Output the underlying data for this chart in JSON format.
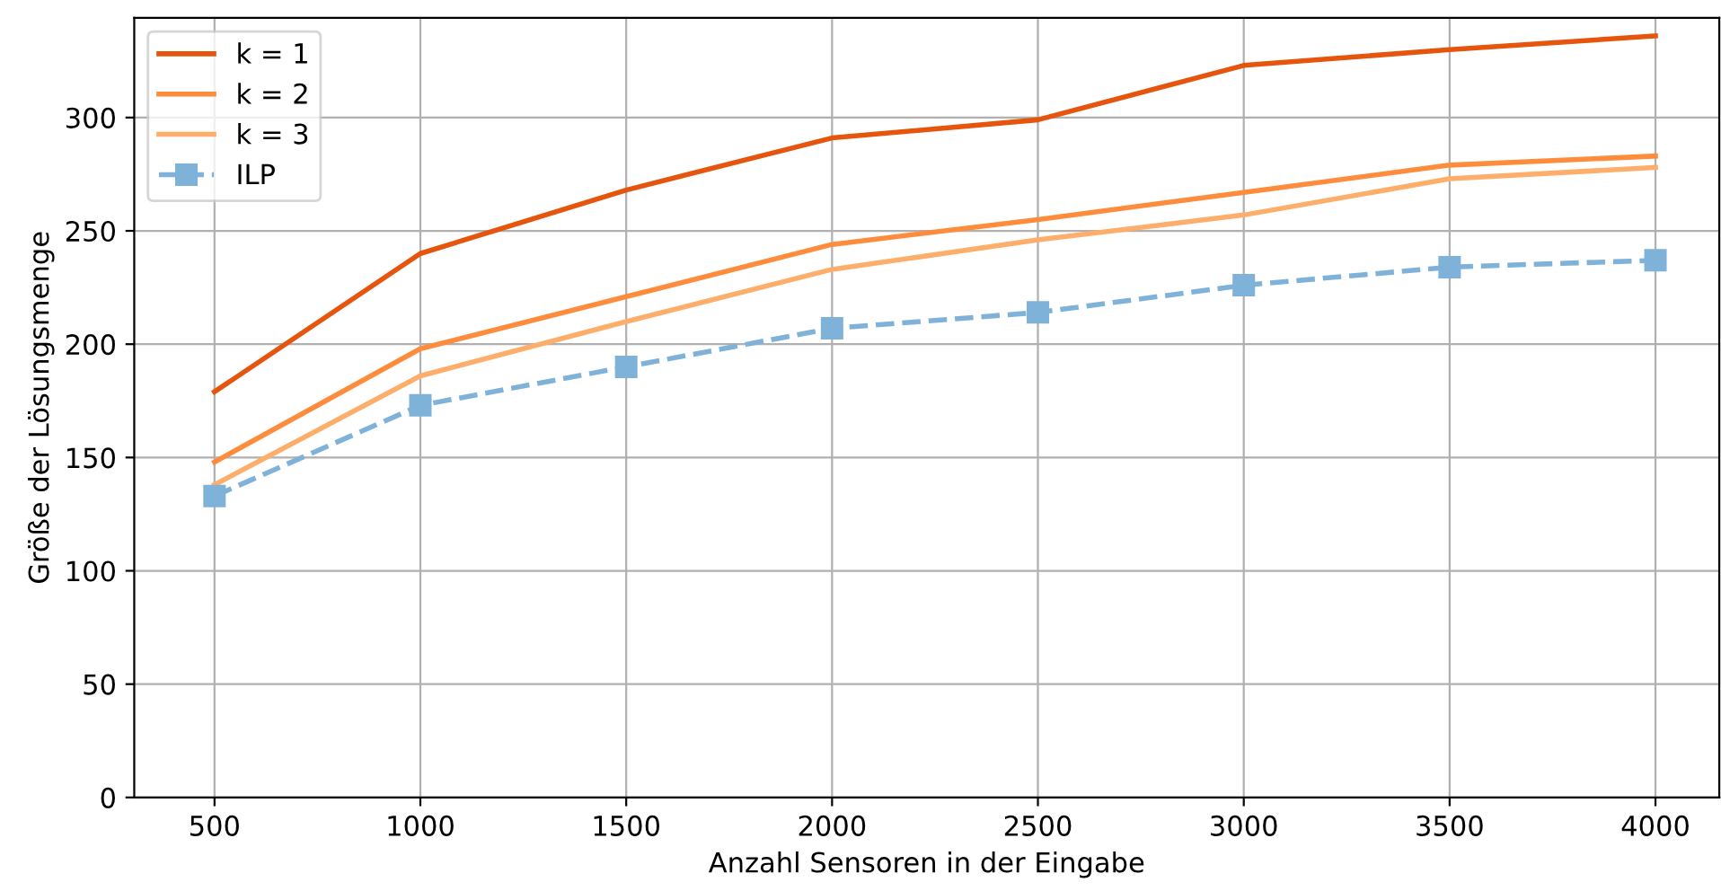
{
  "chart_data": {
    "type": "line",
    "xlabel": "Anzahl Sensoren in der Eingabe",
    "ylabel": "Größe der Lösungsmenge",
    "x": [
      500,
      1000,
      1500,
      2000,
      2500,
      3000,
      3500,
      4000
    ],
    "series": [
      {
        "name": "k = 1",
        "color": "#e6550d",
        "marker": "none",
        "line_style": "solid",
        "values": [
          179,
          240,
          268,
          291,
          299,
          323,
          330,
          336
        ]
      },
      {
        "name": "k = 2",
        "color": "#fd8d3c",
        "marker": "none",
        "line_style": "solid",
        "values": [
          148,
          198,
          221,
          244,
          255,
          267,
          279,
          283
        ]
      },
      {
        "name": "k = 3",
        "color": "#fdae6b",
        "marker": "none",
        "line_style": "solid",
        "values": [
          138,
          186,
          210,
          233,
          246,
          257,
          273,
          278
        ]
      },
      {
        "name": "ILP",
        "color": "#7fb2d8",
        "marker": "square",
        "line_style": "dashed",
        "values": [
          133,
          173,
          190,
          207,
          214,
          226,
          234,
          237
        ]
      }
    ],
    "xlim": [
      305,
      4155
    ],
    "ylim": [
      0,
      344
    ],
    "xticks": [
      500,
      1000,
      1500,
      2000,
      2500,
      3000,
      3500,
      4000
    ],
    "yticks": [
      0,
      50,
      100,
      150,
      200,
      250,
      300
    ],
    "grid": true,
    "legend": "top left"
  }
}
